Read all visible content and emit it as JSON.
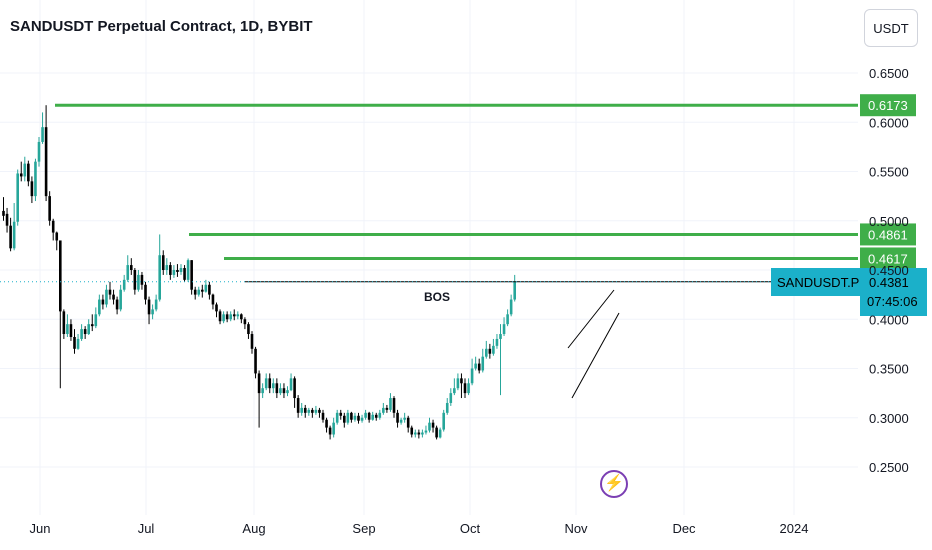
{
  "header": {
    "title": "SANDUSDT Perpetual Contract, 1D, BYBIT",
    "currency_label": "USDT"
  },
  "chart_data": {
    "type": "candlestick",
    "symbol": "SANDUSDT.P",
    "timeframe": "1D",
    "exchange": "BYBIT",
    "ylim": [
      0.21,
      0.66
    ],
    "y_ticks": [
      "0.6500",
      "0.6000",
      "0.5500",
      "0.5000",
      "0.4500",
      "0.4000",
      "0.3500",
      "0.3000",
      "0.2500"
    ],
    "x_ticks": [
      "Jun",
      "Jul",
      "Aug",
      "Sep",
      "Oct",
      "Nov",
      "Dec",
      "2024"
    ],
    "colors": {
      "up": "#26a69a",
      "down": "#000000",
      "level": "#3fae49",
      "last": "#1bb0c9"
    },
    "levels": [
      {
        "label": "0.6173",
        "value": 0.6173
      },
      {
        "label": "0.4861",
        "value": 0.4861
      },
      {
        "label": "0.4617",
        "value": 0.4617
      }
    ],
    "bos": {
      "label": "BOS",
      "value": 0.4381
    },
    "last_price": {
      "symbol_label": "SANDUSDT.P",
      "price": "0.4381",
      "countdown": "07:45:06",
      "value": 0.4381
    },
    "candles": [
      [
        0.505,
        0.524,
        0.51,
        0.5
      ],
      [
        0.495,
        0.513,
        0.507,
        0.488
      ],
      [
        0.472,
        0.503,
        0.495,
        0.469
      ],
      [
        0.499,
        0.518,
        0.472,
        0.47
      ],
      [
        0.548,
        0.552,
        0.499,
        0.495
      ],
      [
        0.545,
        0.56,
        0.548,
        0.54
      ],
      [
        0.558,
        0.565,
        0.545,
        0.54
      ],
      [
        0.54,
        0.561,
        0.558,
        0.535
      ],
      [
        0.525,
        0.545,
        0.54,
        0.518
      ],
      [
        0.56,
        0.563,
        0.525,
        0.52
      ],
      [
        0.58,
        0.585,
        0.56,
        0.555
      ],
      [
        0.595,
        0.61,
        0.58,
        0.578
      ],
      [
        0.525,
        0.6173,
        0.595,
        0.52
      ],
      [
        0.5,
        0.53,
        0.525,
        0.495
      ],
      [
        0.488,
        0.502,
        0.5,
        0.48
      ],
      [
        0.48,
        0.489,
        0.488,
        0.47
      ],
      [
        0.408,
        0.48,
        0.48,
        0.33
      ],
      [
        0.385,
        0.41,
        0.408,
        0.38
      ],
      [
        0.395,
        0.405,
        0.385,
        0.382
      ],
      [
        0.382,
        0.4,
        0.395,
        0.378
      ],
      [
        0.37,
        0.39,
        0.382,
        0.365
      ],
      [
        0.38,
        0.385,
        0.37,
        0.369
      ],
      [
        0.39,
        0.395,
        0.38,
        0.378
      ],
      [
        0.385,
        0.393,
        0.39,
        0.38
      ],
      [
        0.395,
        0.4,
        0.385,
        0.384
      ],
      [
        0.393,
        0.405,
        0.395,
        0.388
      ],
      [
        0.405,
        0.412,
        0.393,
        0.391
      ],
      [
        0.42,
        0.425,
        0.405,
        0.403
      ],
      [
        0.415,
        0.425,
        0.42,
        0.41
      ],
      [
        0.43,
        0.435,
        0.415,
        0.412
      ],
      [
        0.425,
        0.438,
        0.43,
        0.42
      ],
      [
        0.42,
        0.43,
        0.425,
        0.415
      ],
      [
        0.41,
        0.423,
        0.42,
        0.405
      ],
      [
        0.43,
        0.435,
        0.41,
        0.408
      ],
      [
        0.44,
        0.445,
        0.43,
        0.428
      ],
      [
        0.455,
        0.465,
        0.44,
        0.438
      ],
      [
        0.45,
        0.462,
        0.455,
        0.445
      ],
      [
        0.43,
        0.452,
        0.45,
        0.425
      ],
      [
        0.445,
        0.45,
        0.43,
        0.428
      ],
      [
        0.435,
        0.448,
        0.445,
        0.43
      ],
      [
        0.42,
        0.438,
        0.435,
        0.415
      ],
      [
        0.405,
        0.423,
        0.42,
        0.395
      ],
      [
        0.41,
        0.415,
        0.405,
        0.4
      ],
      [
        0.42,
        0.425,
        0.41,
        0.408
      ],
      [
        0.465,
        0.4861,
        0.42,
        0.418
      ],
      [
        0.45,
        0.47,
        0.465,
        0.445
      ],
      [
        0.455,
        0.462,
        0.45,
        0.445
      ],
      [
        0.445,
        0.458,
        0.455,
        0.44
      ],
      [
        0.45,
        0.455,
        0.445,
        0.442
      ],
      [
        0.448,
        0.456,
        0.45,
        0.443
      ],
      [
        0.452,
        0.456,
        0.448,
        0.445
      ],
      [
        0.44,
        0.455,
        0.452,
        0.438
      ],
      [
        0.46,
        0.4617,
        0.44,
        0.438
      ],
      [
        0.43,
        0.46,
        0.46,
        0.425
      ],
      [
        0.425,
        0.433,
        0.43,
        0.42
      ],
      [
        0.43,
        0.433,
        0.425,
        0.423
      ],
      [
        0.428,
        0.435,
        0.43,
        0.422
      ],
      [
        0.435,
        0.44,
        0.428,
        0.427
      ],
      [
        0.425,
        0.438,
        0.435,
        0.42
      ],
      [
        0.415,
        0.426,
        0.425,
        0.41
      ],
      [
        0.408,
        0.417,
        0.415,
        0.402
      ],
      [
        0.398,
        0.41,
        0.408,
        0.395
      ],
      [
        0.405,
        0.408,
        0.398,
        0.396
      ],
      [
        0.4,
        0.408,
        0.405,
        0.397
      ],
      [
        0.405,
        0.408,
        0.4,
        0.398
      ],
      [
        0.403,
        0.41,
        0.405,
        0.399
      ],
      [
        0.405,
        0.408,
        0.403,
        0.4
      ],
      [
        0.4,
        0.406,
        0.405,
        0.396
      ],
      [
        0.395,
        0.402,
        0.4,
        0.39
      ],
      [
        0.385,
        0.397,
        0.395,
        0.38
      ],
      [
        0.37,
        0.388,
        0.385,
        0.365
      ],
      [
        0.345,
        0.372,
        0.37,
        0.34
      ],
      [
        0.325,
        0.348,
        0.345,
        0.29
      ],
      [
        0.33,
        0.335,
        0.325,
        0.32
      ],
      [
        0.34,
        0.345,
        0.33,
        0.328
      ],
      [
        0.33,
        0.345,
        0.34,
        0.325
      ],
      [
        0.335,
        0.34,
        0.33,
        0.325
      ],
      [
        0.325,
        0.34,
        0.335,
        0.32
      ],
      [
        0.33,
        0.335,
        0.325,
        0.323
      ],
      [
        0.325,
        0.335,
        0.33,
        0.32
      ],
      [
        0.328,
        0.332,
        0.325,
        0.322
      ],
      [
        0.34,
        0.345,
        0.328,
        0.327
      ],
      [
        0.32,
        0.342,
        0.34,
        0.31
      ],
      [
        0.305,
        0.323,
        0.32,
        0.3
      ],
      [
        0.31,
        0.315,
        0.305,
        0.302
      ],
      [
        0.305,
        0.313,
        0.31,
        0.3
      ],
      [
        0.308,
        0.31,
        0.305,
        0.302
      ],
      [
        0.305,
        0.31,
        0.308,
        0.3
      ],
      [
        0.308,
        0.312,
        0.305,
        0.303
      ],
      [
        0.305,
        0.31,
        0.308,
        0.3
      ],
      [
        0.298,
        0.308,
        0.305,
        0.295
      ],
      [
        0.29,
        0.3,
        0.298,
        0.285
      ],
      [
        0.283,
        0.292,
        0.29,
        0.278
      ],
      [
        0.295,
        0.3,
        0.283,
        0.28
      ],
      [
        0.305,
        0.308,
        0.295,
        0.293
      ],
      [
        0.302,
        0.308,
        0.305,
        0.298
      ],
      [
        0.295,
        0.305,
        0.302,
        0.29
      ],
      [
        0.305,
        0.308,
        0.295,
        0.293
      ],
      [
        0.298,
        0.306,
        0.305,
        0.295
      ],
      [
        0.302,
        0.305,
        0.298,
        0.296
      ],
      [
        0.297,
        0.305,
        0.302,
        0.294
      ],
      [
        0.3,
        0.303,
        0.297,
        0.295
      ],
      [
        0.305,
        0.308,
        0.3,
        0.298
      ],
      [
        0.298,
        0.306,
        0.305,
        0.295
      ],
      [
        0.303,
        0.306,
        0.298,
        0.297
      ],
      [
        0.3,
        0.305,
        0.303,
        0.297
      ],
      [
        0.305,
        0.308,
        0.3,
        0.298
      ],
      [
        0.31,
        0.315,
        0.305,
        0.303
      ],
      [
        0.308,
        0.313,
        0.31,
        0.305
      ],
      [
        0.32,
        0.325,
        0.308,
        0.306
      ],
      [
        0.305,
        0.322,
        0.32,
        0.3
      ],
      [
        0.295,
        0.308,
        0.305,
        0.29
      ],
      [
        0.298,
        0.3,
        0.295,
        0.293
      ],
      [
        0.3,
        0.305,
        0.298,
        0.295
      ],
      [
        0.29,
        0.302,
        0.3,
        0.285
      ],
      [
        0.283,
        0.292,
        0.29,
        0.28
      ],
      [
        0.285,
        0.288,
        0.283,
        0.28
      ],
      [
        0.283,
        0.288,
        0.285,
        0.279
      ],
      [
        0.285,
        0.288,
        0.283,
        0.28
      ],
      [
        0.287,
        0.292,
        0.285,
        0.283
      ],
      [
        0.295,
        0.3,
        0.287,
        0.285
      ],
      [
        0.29,
        0.298,
        0.295,
        0.285
      ],
      [
        0.28,
        0.292,
        0.29,
        0.278
      ],
      [
        0.288,
        0.29,
        0.28,
        0.279
      ],
      [
        0.305,
        0.308,
        0.288,
        0.286
      ],
      [
        0.315,
        0.32,
        0.305,
        0.303
      ],
      [
        0.325,
        0.33,
        0.315,
        0.312
      ],
      [
        0.33,
        0.34,
        0.325,
        0.323
      ],
      [
        0.34,
        0.345,
        0.33,
        0.328
      ],
      [
        0.335,
        0.345,
        0.34,
        0.32
      ],
      [
        0.325,
        0.34,
        0.335,
        0.32
      ],
      [
        0.335,
        0.34,
        0.325,
        0.323
      ],
      [
        0.35,
        0.36,
        0.335,
        0.333
      ],
      [
        0.355,
        0.362,
        0.35,
        0.348
      ],
      [
        0.348,
        0.36,
        0.355,
        0.345
      ],
      [
        0.362,
        0.37,
        0.348,
        0.346
      ],
      [
        0.37,
        0.378,
        0.362,
        0.36
      ],
      [
        0.365,
        0.375,
        0.37,
        0.36
      ],
      [
        0.373,
        0.38,
        0.365,
        0.363
      ],
      [
        0.38,
        0.385,
        0.373,
        0.37
      ],
      [
        0.385,
        0.395,
        0.38,
        0.323
      ],
      [
        0.395,
        0.402,
        0.385,
        0.383
      ],
      [
        0.405,
        0.41,
        0.395,
        0.393
      ],
      [
        0.42,
        0.425,
        0.405,
        0.403
      ],
      [
        0.4381,
        0.445,
        0.42,
        0.418
      ]
    ]
  }
}
